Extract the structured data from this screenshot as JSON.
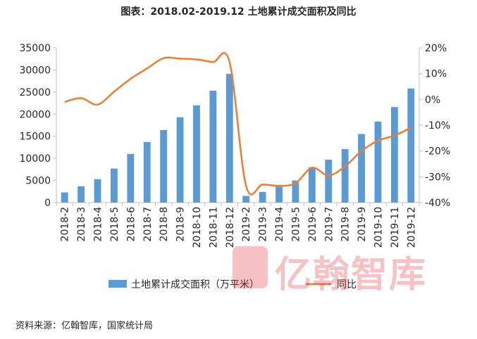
{
  "chart_data": {
    "type": "bar",
    "title": "图表：2018.02-2019.12 土地累计成交面积及同比",
    "categories": [
      "2018-2",
      "2018-3",
      "2018-4",
      "2018-5",
      "2018-6",
      "2018-7",
      "2018-8",
      "2018-9",
      "2018-10",
      "2018-11",
      "2018-12",
      "2019-2",
      "2019-3",
      "2019-4",
      "2019-5",
      "2019-6",
      "2019-7",
      "2019-8",
      "2019-9",
      "2019-10",
      "2019-11",
      "2019-12"
    ],
    "series": [
      {
        "name": "土地累计成交面积（万平米）",
        "type": "bar",
        "axis": "left",
        "color": "#5b9bd5",
        "values": [
          2300,
          3700,
          5300,
          7700,
          11000,
          13700,
          16400,
          19300,
          22000,
          25300,
          29100,
          1500,
          2400,
          3600,
          5000,
          8000,
          9700,
          12100,
          15500,
          18300,
          21600,
          25800
        ]
      },
      {
        "name": "同比",
        "type": "line",
        "axis": "right",
        "color": "#ed7d31",
        "values": [
          -1,
          0.5,
          -2,
          3,
          8,
          12,
          16,
          15.8,
          15.5,
          14.5,
          14.5,
          -33.5,
          -33,
          -33.5,
          -32.5,
          -26.5,
          -29.5,
          -26,
          -20,
          -16,
          -14,
          -11
        ]
      }
    ],
    "y_left": {
      "min": 0,
      "max": 35000,
      "ticks": [
        "0",
        "5000",
        "10000",
        "15000",
        "20000",
        "25000",
        "30000",
        "35000"
      ]
    },
    "y_right": {
      "min": -40,
      "max": 20,
      "ticks": [
        "-40%",
        "-30%",
        "-20%",
        "-10%",
        "0%",
        "10%",
        "20%"
      ]
    },
    "legend_position": "bottom",
    "grid": false
  },
  "source": "资料来源：亿翰智库，国家统计局",
  "watermark": "亿翰智库"
}
